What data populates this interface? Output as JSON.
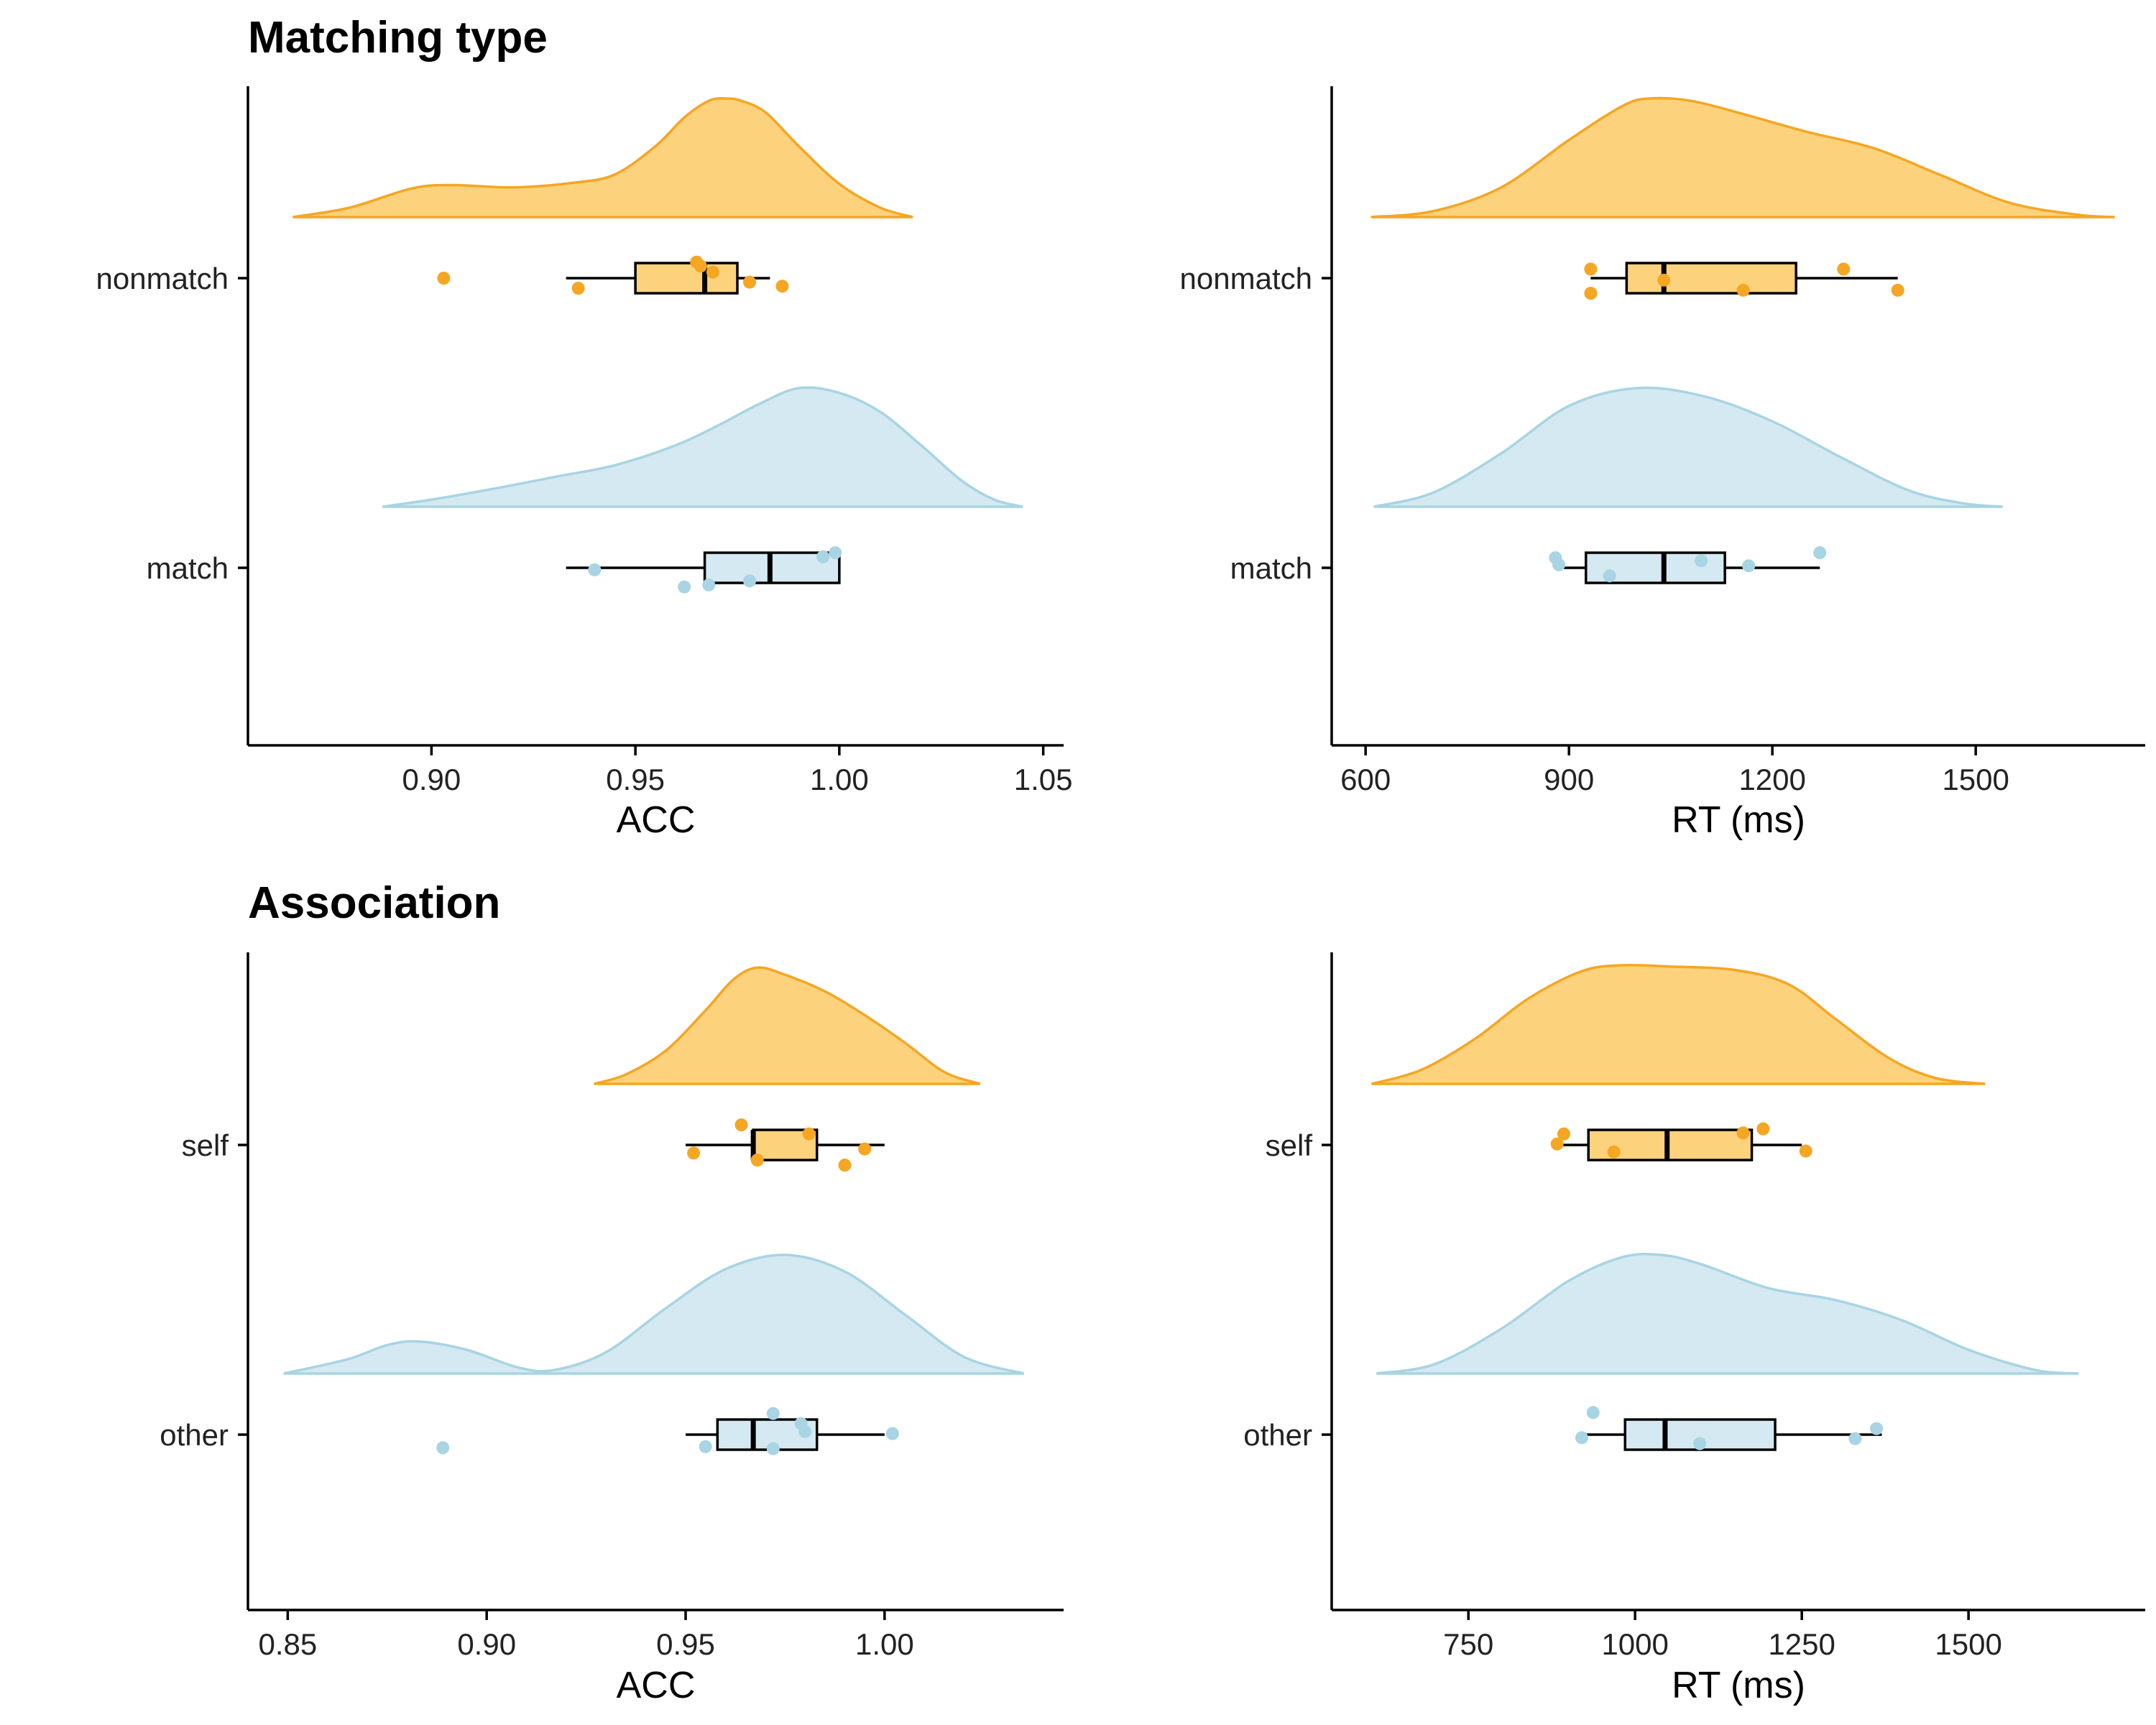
{
  "colors": {
    "orange": "#F5A623",
    "orange_fill": "#FDD27D",
    "blue": "#A8D4E3",
    "blue_fill": "#D4E9F1",
    "box_stroke": "#000000"
  },
  "section_titles": {
    "top": "Matching type",
    "bottom": "Association"
  },
  "chart_data": [
    {
      "type": "raincloud",
      "section": "Matching type",
      "xlabel": "ACC",
      "xlim": [
        0.855,
        1.055
      ],
      "xticks": [
        0.9,
        0.95,
        1.0,
        1.05
      ],
      "xtick_labels": [
        "0.90",
        "0.95",
        "1.00",
        "1.05"
      ],
      "categories": [
        "nonmatch",
        "match"
      ],
      "series": [
        {
          "category": "nonmatch",
          "color": "orange",
          "density": {
            "x": [
              0.866,
              0.88,
              0.895,
              0.905,
              0.92,
              0.935,
              0.945,
              0.955,
              0.962,
              0.968,
              0.972,
              0.976,
              0.982,
              0.99,
              1.0,
              1.01,
              1.018
            ],
            "y": [
              0.0,
              0.08,
              0.24,
              0.27,
              0.25,
              0.29,
              0.36,
              0.6,
              0.84,
              0.98,
              1.0,
              0.98,
              0.88,
              0.6,
              0.28,
              0.08,
              0.0
            ]
          },
          "box": {
            "min": 0.933,
            "q1": 0.95,
            "median": 0.967,
            "q3": 0.975,
            "max": 0.983
          },
          "points": [
            [
              0.903,
              0.0
            ],
            [
              0.936,
              -0.5
            ],
            [
              0.965,
              0.8
            ],
            [
              0.966,
              0.6
            ],
            [
              0.969,
              0.3
            ],
            [
              0.978,
              -0.2
            ],
            [
              0.986,
              -0.4
            ]
          ]
        },
        {
          "category": "match",
          "color": "blue",
          "density": {
            "x": [
              0.888,
              0.9,
              0.915,
              0.93,
              0.945,
              0.96,
              0.97,
              0.98,
              0.99,
              1.0,
              1.01,
              1.02,
              1.03,
              1.038,
              1.045
            ],
            "y": [
              0.0,
              0.06,
              0.15,
              0.25,
              0.35,
              0.52,
              0.68,
              0.86,
              1.0,
              0.96,
              0.8,
              0.52,
              0.22,
              0.06,
              0.0
            ]
          },
          "box": {
            "min": 0.933,
            "q1": 0.967,
            "median": 0.983,
            "q3": 1.0,
            "max": 1.0
          },
          "points": [
            [
              0.94,
              -0.1
            ],
            [
              0.962,
              -0.95
            ],
            [
              0.968,
              -0.85
            ],
            [
              0.978,
              -0.65
            ],
            [
              0.996,
              0.55
            ],
            [
              0.999,
              0.75
            ]
          ]
        }
      ]
    },
    {
      "type": "raincloud",
      "section": "Matching type",
      "xlabel": "RT (ms)",
      "xlim": [
        550,
        1750
      ],
      "xticks": [
        600,
        900,
        1200,
        1500
      ],
      "xtick_labels": [
        "600",
        "900",
        "1200",
        "1500"
      ],
      "categories": [
        "nonmatch",
        "match"
      ],
      "series": [
        {
          "category": "nonmatch",
          "color": "orange",
          "density": {
            "x": [
              608,
              700,
              800,
              900,
              980,
              1020,
              1080,
              1150,
              1250,
              1350,
              1450,
              1550,
              1650,
              1705
            ],
            "y": [
              0.0,
              0.05,
              0.25,
              0.65,
              0.94,
              1.0,
              0.98,
              0.88,
              0.72,
              0.58,
              0.35,
              0.12,
              0.02,
              0.0
            ]
          },
          "box": {
            "min": 932,
            "q1": 985,
            "median": 1040,
            "q3": 1235,
            "max": 1385
          },
          "points": [
            [
              932,
              0.45
            ],
            [
              932,
              -0.75
            ],
            [
              1040,
              -0.1
            ],
            [
              1157,
              -0.6
            ],
            [
              1305,
              0.45
            ],
            [
              1385,
              -0.6
            ]
          ]
        },
        {
          "category": "match",
          "color": "blue",
          "density": {
            "x": [
              612,
              700,
              800,
              900,
              1000,
              1100,
              1200,
              1300,
              1400,
              1480,
              1540
            ],
            "y": [
              0.0,
              0.12,
              0.45,
              0.85,
              1.0,
              0.93,
              0.72,
              0.42,
              0.14,
              0.03,
              0.0
            ]
          },
          "box": {
            "min": 880,
            "q1": 925,
            "median": 1040,
            "q3": 1130,
            "max": 1270
          },
          "points": [
            [
              880,
              0.5
            ],
            [
              885,
              0.15
            ],
            [
              960,
              -0.4
            ],
            [
              1095,
              0.35
            ],
            [
              1165,
              0.1
            ],
            [
              1270,
              0.75
            ]
          ]
        }
      ]
    },
    {
      "type": "raincloud",
      "section": "Association",
      "xlabel": "ACC",
      "xlim": [
        0.84,
        1.045
      ],
      "xticks": [
        0.85,
        0.9,
        0.95,
        1.0
      ],
      "xtick_labels": [
        "0.85",
        "0.90",
        "0.95",
        "1.00"
      ],
      "categories": [
        "self",
        "other"
      ],
      "series": [
        {
          "category": "self",
          "color": "orange",
          "density": {
            "x": [
              0.927,
              0.935,
              0.945,
              0.955,
              0.962,
              0.968,
              0.975,
              0.985,
              0.995,
              1.005,
              1.015,
              1.024
            ],
            "y": [
              0.0,
              0.08,
              0.28,
              0.62,
              0.88,
              0.98,
              0.92,
              0.78,
              0.58,
              0.35,
              0.1,
              0.0
            ]
          },
          "box": {
            "min": 0.95,
            "q1": 0.967,
            "median": 0.967,
            "q3": 0.983,
            "max": 1.0
          },
          "points": [
            [
              0.952,
              -0.4
            ],
            [
              0.964,
              1.0
            ],
            [
              0.968,
              -0.75
            ],
            [
              0.981,
              0.55
            ],
            [
              0.99,
              -1.0
            ],
            [
              0.995,
              -0.2
            ]
          ]
        },
        {
          "category": "other",
          "color": "blue",
          "density": {
            "x": [
              0.849,
              0.865,
              0.875,
              0.883,
              0.895,
              0.908,
              0.917,
              0.93,
              0.945,
              0.96,
              0.975,
              0.99,
              1.005,
              1.02,
              1.035
            ],
            "y": [
              0.0,
              0.12,
              0.24,
              0.27,
              0.2,
              0.05,
              0.03,
              0.18,
              0.55,
              0.88,
              1.0,
              0.86,
              0.5,
              0.14,
              0.0
            ]
          },
          "box": {
            "min": 0.95,
            "q1": 0.958,
            "median": 0.967,
            "q3": 0.983,
            "max": 1.0
          },
          "points": [
            [
              0.889,
              -0.65
            ],
            [
              0.955,
              -0.6
            ],
            [
              0.972,
              1.05
            ],
            [
              0.972,
              -0.7
            ],
            [
              0.979,
              0.55
            ],
            [
              0.98,
              0.15
            ],
            [
              1.002,
              0.05
            ]
          ]
        }
      ]
    },
    {
      "type": "raincloud",
      "section": "Association",
      "xlabel": "RT (ms)",
      "xlim": [
        545,
        1765
      ],
      "xticks": [
        750,
        1000,
        1250,
        1500
      ],
      "xtick_labels": [
        "750",
        "1000",
        "1250",
        "1500"
      ],
      "categories": [
        "self",
        "other"
      ],
      "series": [
        {
          "category": "self",
          "color": "orange",
          "density": {
            "x": [
              605,
              680,
              760,
              840,
              920,
              980,
              1050,
              1150,
              1230,
              1300,
              1380,
              1450,
              1525
            ],
            "y": [
              0.0,
              0.12,
              0.38,
              0.72,
              0.95,
              1.0,
              0.99,
              0.96,
              0.84,
              0.55,
              0.22,
              0.05,
              0.0
            ]
          },
          "box": {
            "min": 880,
            "q1": 930,
            "median": 1048,
            "q3": 1175,
            "max": 1250
          },
          "points": [
            [
              883,
              0.05
            ],
            [
              893,
              0.55
            ],
            [
              968,
              -0.35
            ],
            [
              1162,
              0.6
            ],
            [
              1192,
              0.8
            ],
            [
              1256,
              -0.3
            ]
          ]
        },
        {
          "category": "other",
          "color": "blue",
          "density": {
            "x": [
              612,
              700,
              800,
              900,
              980,
              1040,
              1100,
              1200,
              1300,
              1400,
              1500,
              1600,
              1665
            ],
            "y": [
              0.0,
              0.08,
              0.38,
              0.78,
              0.98,
              1.0,
              0.92,
              0.72,
              0.62,
              0.45,
              0.2,
              0.03,
              0.0
            ]
          },
          "box": {
            "min": 920,
            "q1": 985,
            "median": 1045,
            "q3": 1210,
            "max": 1370
          },
          "points": [
            [
              920,
              -0.15
            ],
            [
              937,
              1.1
            ],
            [
              1097,
              -0.45
            ],
            [
              1330,
              -0.2
            ],
            [
              1362,
              0.3
            ]
          ]
        }
      ]
    }
  ]
}
